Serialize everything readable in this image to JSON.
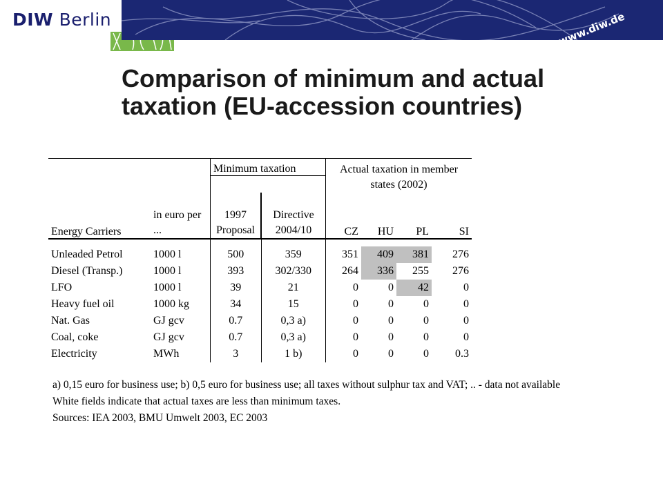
{
  "header": {
    "logo_bold": "DIW",
    "logo_rest": " Berlin",
    "url": "www.diw.de"
  },
  "title_line1": "Comparison of minimum and actual",
  "title_line2": "taxation (EU-accession countries)",
  "table": {
    "group_min": "Minimum taxation",
    "group_actual_1": "Actual taxation in member",
    "group_actual_2": "states (2002)",
    "col_carrier": "Energy Carriers",
    "col_unit_1": "in euro per",
    "col_unit_2": "...",
    "col_prop_1": "1997",
    "col_prop_2": "Proposal",
    "col_dir_1": "Directive",
    "col_dir_2": "2004/10",
    "countries": [
      "CZ",
      "HU",
      "PL",
      "SI"
    ],
    "rows": [
      {
        "carrier": "Unleaded Petrol",
        "unit": "1000 l",
        "proposal": "500",
        "directive": "359",
        "cz": "351",
        "hu": "409",
        "pl": "381",
        "si": "276"
      },
      {
        "carrier": "Diesel  (Transp.)",
        "unit": "1000 l",
        "proposal": "393",
        "directive": "302/330",
        "cz": "264",
        "hu": "336",
        "pl": "255",
        "si": "276"
      },
      {
        "carrier": "LFO",
        "unit": "1000 l",
        "proposal": "39",
        "directive": "21",
        "cz": "0",
        "hu": "0",
        "pl": "42",
        "si": "0"
      },
      {
        "carrier": "Heavy fuel oil",
        "unit": "1000 kg",
        "proposal": "34",
        "directive": "15",
        "cz": "0",
        "hu": "0",
        "pl": "0",
        "si": "0"
      },
      {
        "carrier": "Nat. Gas",
        "unit": "GJ gcv",
        "proposal": "0.7",
        "directive": "0,3 a)",
        "cz": "0",
        "hu": "0",
        "pl": "0",
        "si": "0"
      },
      {
        "carrier": "Coal, coke",
        "unit": "GJ gcv",
        "proposal": "0.7",
        "directive": "0,3 a)",
        "cz": "0",
        "hu": "0",
        "pl": "0",
        "si": "0"
      },
      {
        "carrier": "Electricity",
        "unit": "MWh",
        "proposal": "3",
        "directive": "1 b)",
        "cz": "0",
        "hu": "0",
        "pl": "0",
        "si": "0.3"
      }
    ],
    "shaded": {
      "hu": [
        0,
        1
      ],
      "pl": [
        0,
        2
      ]
    },
    "shade_color": "#c0c0c0"
  },
  "notes": [
    "a) 0,15 euro for business use; b) 0,5 euro for business use; all taxes without sulphur tax and VAT; .. - data not available",
    "White fields indicate that actual taxes are less than minimum taxes.",
    "Sources: IEA 2003, BMU Umwelt 2003, EC 2003"
  ],
  "colors": {
    "banner": "#1b2773",
    "green": "#79b84a",
    "logo_text": "#1a1f6e"
  }
}
